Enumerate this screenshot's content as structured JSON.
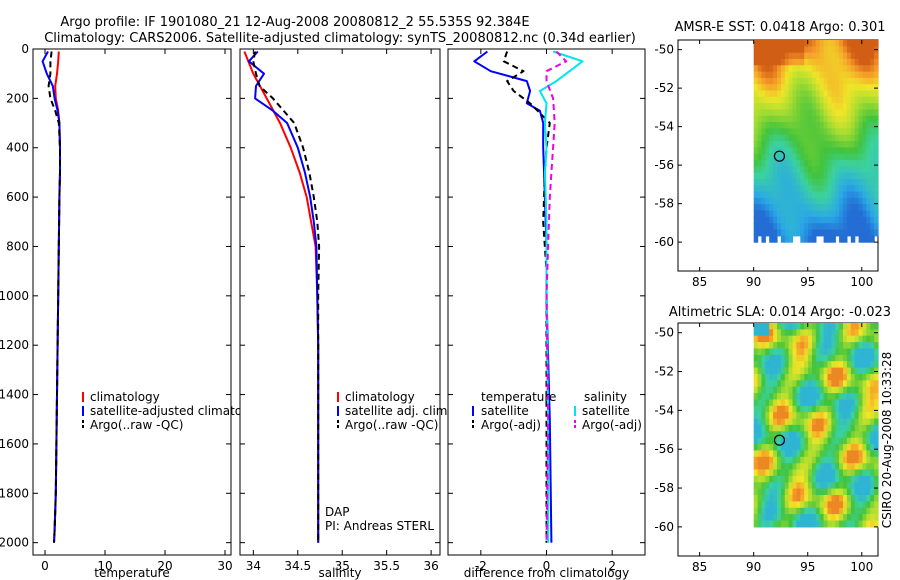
{
  "header": {
    "line1": "Argo profile: IF 1901080_21 12-Aug-2008 20080812_2 55.535S 92.384E",
    "line2": "Climatology: CARS2006. Satellite-adjusted climatology: synTS_20080812.nc (0.34d earlier)"
  },
  "side_stamp": "CSIRO 20-Aug-2008 10:33:28",
  "colors": {
    "climatology": "#ff0000",
    "satellite": "#0000ff",
    "argo": "#000000",
    "sat_salinity": "#00e5ee",
    "argo_adj_salinity": "#ee00ee"
  },
  "chart_data": [
    {
      "id": "temperature",
      "type": "line",
      "xlabel": "temperature",
      "xlim": [
        -2,
        31
      ],
      "ylim": [
        2050,
        0
      ],
      "xticks": [
        0,
        10,
        20,
        30
      ],
      "yticks": [
        0,
        200,
        400,
        600,
        800,
        1000,
        1200,
        1400,
        1600,
        1800,
        2000
      ],
      "legend": [
        "climatology",
        "satellite-adjusted climatology",
        "Argo(..raw -QC)"
      ],
      "series": [
        {
          "name": "climatology",
          "color": "#ff0000",
          "dash": false,
          "x": [
            2.3,
            2.2,
            2.0,
            1.7,
            1.8,
            2.2,
            2.4,
            2.5,
            2.5,
            2.4,
            2.3,
            2.2,
            2.1,
            2.0,
            1.9,
            1.8,
            1.6,
            1.5
          ],
          "y": [
            10,
            50,
            100,
            150,
            200,
            250,
            300,
            400,
            500,
            600,
            800,
            1000,
            1200,
            1400,
            1600,
            1800,
            1950,
            2000
          ]
        },
        {
          "name": "satellite-adjusted climatology",
          "color": "#0000ff",
          "dash": false,
          "x": [
            0.5,
            -0.4,
            0.3,
            1.3,
            1.6,
            2.1,
            2.4,
            2.5,
            2.5,
            2.4,
            2.3,
            2.2,
            2.1,
            2.0,
            1.9,
            1.8,
            1.6,
            1.5
          ],
          "y": [
            10,
            50,
            100,
            150,
            200,
            250,
            300,
            400,
            500,
            600,
            800,
            1000,
            1200,
            1400,
            1600,
            1800,
            1950,
            2000
          ]
        },
        {
          "name": "Argo(..raw -QC)",
          "color": "#000000",
          "dash": true,
          "x": [
            1.1,
            0.9,
            0.9,
            0.6,
            0.9,
            1.7,
            2.3,
            2.5,
            2.5,
            2.4,
            2.3,
            2.2,
            2.1,
            2.0,
            1.9,
            1.8,
            1.6,
            1.5
          ],
          "y": [
            10,
            50,
            100,
            150,
            200,
            250,
            300,
            400,
            500,
            600,
            800,
            1000,
            1200,
            1400,
            1600,
            1800,
            1950,
            2000
          ]
        }
      ]
    },
    {
      "id": "salinity",
      "type": "line",
      "xlabel": "salinity",
      "xlim": [
        33.85,
        36.1
      ],
      "ylim": [
        2050,
        0
      ],
      "xticks": [
        34,
        34.5,
        35,
        35.5,
        36
      ],
      "legend": [
        "climatology",
        "satellite adj. clim.",
        "Argo(..raw -QC)"
      ],
      "annotation": [
        "DAP",
        "PI: Andreas STERL"
      ],
      "series": [
        {
          "name": "climatology",
          "color": "#ff0000",
          "dash": false,
          "x": [
            33.9,
            34.0,
            34.15,
            34.3,
            34.42,
            34.52,
            34.6,
            34.65,
            34.7,
            34.72,
            34.73,
            34.73,
            34.73
          ],
          "y": [
            10,
            100,
            200,
            300,
            400,
            500,
            600,
            700,
            800,
            1000,
            1200,
            1600,
            2000
          ]
        },
        {
          "name": "satellite adj. clim.",
          "color": "#0000ff",
          "dash": false,
          "x": [
            34.05,
            33.95,
            34.12,
            34.03,
            34.02,
            34.22,
            34.38,
            34.5,
            34.58,
            34.64,
            34.68,
            34.71,
            34.72,
            34.73,
            34.73,
            34.73
          ],
          "y": [
            10,
            50,
            100,
            150,
            200,
            250,
            300,
            400,
            500,
            600,
            700,
            800,
            1000,
            1200,
            1600,
            2000
          ]
        },
        {
          "name": "Argo(..raw -QC)",
          "color": "#000000",
          "dash": true,
          "x": [
            34.02,
            34.0,
            34.03,
            34.07,
            34.22,
            34.34,
            34.46,
            34.56,
            34.63,
            34.68,
            34.72,
            34.74,
            34.73,
            34.73
          ],
          "y": [
            10,
            50,
            100,
            150,
            200,
            250,
            300,
            400,
            500,
            600,
            700,
            800,
            1000,
            2000
          ]
        }
      ]
    },
    {
      "id": "difference",
      "type": "line",
      "xlabel": "difference from climatology",
      "xlim": [
        -3.0,
        3.0
      ],
      "ylim": [
        2050,
        0
      ],
      "xticks": [
        -2,
        0,
        2
      ],
      "legend_titles": [
        "temperature",
        "salinity"
      ],
      "legend_left": [
        "satellite",
        "Argo(-adj)"
      ],
      "legend_right": [
        "satellite",
        "Argo(-adj)"
      ],
      "series": [
        {
          "name": "temperature satellite",
          "color": "#0000ff",
          "dash": false,
          "x": [
            -1.8,
            -2.2,
            -1.7,
            -0.6,
            -0.5,
            -0.6,
            -0.2,
            -0.1,
            -0.1,
            -0.05,
            0.0,
            0.0,
            0.1,
            0.15
          ],
          "y": [
            10,
            50,
            90,
            130,
            170,
            220,
            250,
            300,
            400,
            600,
            800,
            1000,
            1500,
            2000
          ]
        },
        {
          "name": "temperature Argo(-adj)",
          "color": "#000000",
          "dash": true,
          "x": [
            -1.2,
            -1.3,
            -0.7,
            -1.2,
            -1.0,
            -0.5,
            0.1,
            0.0,
            -0.05,
            -0.1,
            0.0,
            0.0,
            0.0
          ],
          "y": [
            10,
            50,
            90,
            130,
            170,
            220,
            300,
            400,
            500,
            700,
            900,
            1500,
            2000
          ]
        },
        {
          "name": "salinity satellite",
          "color": "#00e5ee",
          "dash": false,
          "x": [
            0.2,
            1.1,
            0.7,
            0.3,
            -0.2,
            0.0,
            -0.05,
            0.0,
            -0.05,
            0.0,
            0.0,
            0.05,
            0.05
          ],
          "y": [
            10,
            50,
            90,
            130,
            170,
            220,
            300,
            400,
            500,
            700,
            900,
            1500,
            2000
          ]
        },
        {
          "name": "salinity Argo(-adj)",
          "color": "#ee00ee",
          "dash": true,
          "x": [
            0.3,
            0.6,
            0.0,
            0.0,
            0.2,
            0.25,
            0.2,
            0.15,
            0.1,
            0.05,
            0.0,
            0.05,
            0.0
          ],
          "y": [
            10,
            50,
            90,
            130,
            200,
            300,
            400,
            500,
            600,
            800,
            1000,
            1500,
            2000
          ]
        }
      ]
    },
    {
      "id": "sst_map",
      "type": "heatmap",
      "title": "AMSR-E SST: 0.0418  Argo: 0.301",
      "xlim": [
        83,
        101.5
      ],
      "ylim": [
        -61.5,
        -49.5
      ],
      "xticks": [
        85,
        90,
        95,
        100
      ],
      "yticks": [
        -50,
        -52,
        -54,
        -56,
        -58,
        -60
      ],
      "data_extent": {
        "lon": [
          90,
          101.5
        ],
        "lat": [
          -60,
          -49.5
        ]
      },
      "marker": {
        "lon": 92.384,
        "lat": -55.535
      }
    },
    {
      "id": "sla_map",
      "type": "heatmap",
      "title": "Altimetric SLA: 0.014  Argo: -0.023",
      "xlim": [
        83,
        101.5
      ],
      "ylim": [
        -61.5,
        -49.5
      ],
      "xticks": [
        85,
        90,
        95,
        100
      ],
      "yticks": [
        -50,
        -52,
        -54,
        -56,
        -58,
        -60
      ],
      "data_extent": {
        "lon": [
          90,
          101.5
        ],
        "lat": [
          -60,
          -49.5
        ]
      },
      "marker": {
        "lon": 92.384,
        "lat": -55.535
      }
    }
  ]
}
